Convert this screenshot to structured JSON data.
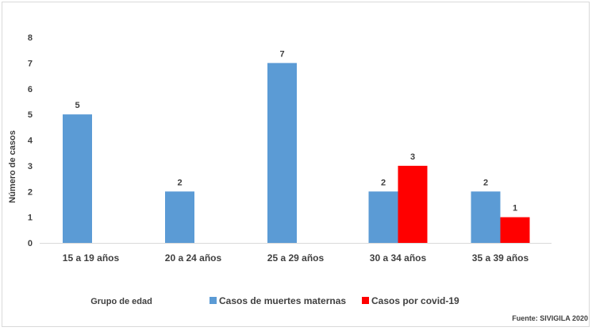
{
  "chart_data": {
    "type": "bar",
    "categories": [
      "15 a 19 años",
      "20 a 24 años",
      "25 a 29 años",
      "30 a 34 años",
      "35 a 39 años"
    ],
    "series": [
      {
        "name": "Casos de muertes maternas",
        "color": "#5b9bd5",
        "values": [
          5,
          2,
          7,
          2,
          2
        ]
      },
      {
        "name": "Casos por covid-19",
        "color": "#ff0000",
        "values": [
          null,
          null,
          null,
          3,
          1
        ]
      }
    ],
    "xlabel": "Grupo de edad",
    "ylabel": "Número de casos",
    "ylim": [
      0,
      8
    ],
    "yticks": [
      0,
      1,
      2,
      3,
      4,
      5,
      6,
      7,
      8
    ],
    "grid": false,
    "legend": "bottom",
    "source": "Fuente: SIVIGILA 2020"
  }
}
